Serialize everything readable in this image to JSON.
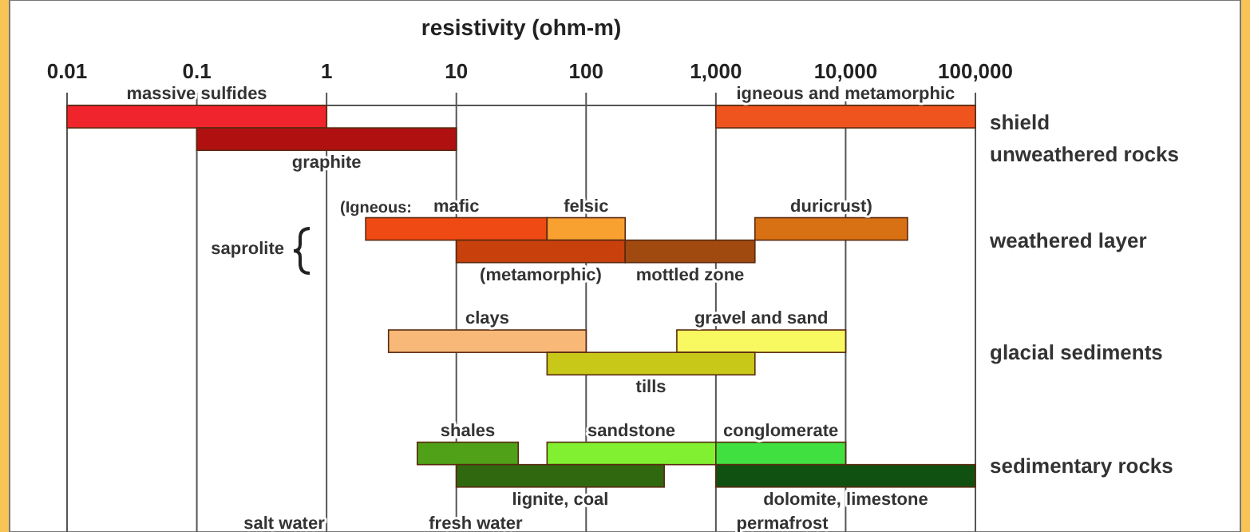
{
  "chart_data": {
    "type": "bar",
    "orientation": "horizontal",
    "log": "x",
    "grid": "x",
    "xlabel": "resistivity (ohm-m)",
    "categories": [
      null,
      null,
      null,
      null,
      null,
      null,
      null,
      null,
      null,
      null,
      null,
      null,
      null,
      null,
      null,
      null,
      null,
      null,
      null
    ],
    "xlim": [
      0.01,
      100000
    ],
    "xticks": [
      0.01,
      0.1,
      1,
      10,
      100,
      {
        "value": 1000,
        "label": "1,000"
      },
      {
        "value": 10000,
        "label": "10,000"
      },
      {
        "value": 100000,
        "label": "100,000"
      }
    ],
    "series": [
      {
        "name": "massive sulfides",
        "color": "#f0242c",
        "base": [
          0.01,
          null,
          null,
          null,
          null,
          null,
          null,
          null,
          null,
          null,
          null,
          null,
          null,
          null,
          null,
          null,
          null,
          null,
          null
        ],
        "values": [
          0.99,
          null,
          null,
          null,
          null,
          null,
          null,
          null,
          null,
          null,
          null,
          null,
          null,
          null,
          null,
          null,
          null,
          null,
          null
        ]
      },
      {
        "name": "igneous and metamorphic",
        "color": "#f0541e",
        "base": [
          1000,
          null,
          null,
          null,
          null,
          null,
          null,
          null,
          null,
          null,
          null,
          null,
          null,
          null,
          null,
          null,
          null,
          null,
          null
        ],
        "values": [
          99000,
          null,
          null,
          null,
          null,
          null,
          null,
          null,
          null,
          null,
          null,
          null,
          null,
          null,
          null,
          null,
          null,
          null,
          null
        ]
      },
      {
        "name": "graphite",
        "color": "#b01010",
        "base": [
          null,
          0.1,
          null,
          null,
          null,
          null,
          null,
          null,
          null,
          null,
          null,
          null,
          null,
          null,
          null,
          null,
          null,
          null,
          null
        ],
        "values": [
          null,
          9.9,
          null,
          null,
          null,
          null,
          null,
          null,
          null,
          null,
          null,
          null,
          null,
          null,
          null,
          null,
          null,
          null,
          null
        ]
      },
      {
        "name": "mafic",
        "color": "#f04a14",
        "base": [
          null,
          null,
          null,
          null,
          null,
          2,
          null,
          null,
          null,
          null,
          null,
          null,
          null,
          null,
          null,
          null,
          null,
          null,
          null
        ],
        "values": [
          null,
          null,
          null,
          null,
          null,
          48,
          null,
          null,
          null,
          null,
          null,
          null,
          null,
          null,
          null,
          null,
          null,
          null,
          null
        ]
      },
      {
        "name": "felsic",
        "color": "#f8a030",
        "base": [
          null,
          null,
          null,
          null,
          null,
          50,
          null,
          null,
          null,
          null,
          null,
          null,
          null,
          null,
          null,
          null,
          null,
          null,
          null
        ],
        "values": [
          null,
          null,
          null,
          null,
          null,
          150,
          null,
          null,
          null,
          null,
          null,
          null,
          null,
          null,
          null,
          null,
          null,
          null,
          null
        ]
      },
      {
        "name": "duricrust)",
        "color": "#d87014",
        "base": [
          null,
          null,
          null,
          null,
          null,
          2000,
          null,
          null,
          null,
          null,
          null,
          null,
          null,
          null,
          null,
          null,
          null,
          null,
          null
        ],
        "values": [
          null,
          null,
          null,
          null,
          null,
          28000,
          null,
          null,
          null,
          null,
          null,
          null,
          null,
          null,
          null,
          null,
          null,
          null,
          null
        ]
      },
      {
        "name": "(metamorphic)",
        "color": "#c8400c",
        "base": [
          null,
          null,
          null,
          null,
          null,
          null,
          10,
          null,
          null,
          null,
          null,
          null,
          null,
          null,
          null,
          null,
          null,
          null,
          null
        ],
        "values": [
          null,
          null,
          null,
          null,
          null,
          null,
          190,
          null,
          null,
          null,
          null,
          null,
          null,
          null,
          null,
          null,
          null,
          null,
          null
        ]
      },
      {
        "name": "mottled zone",
        "color": "#a04a10",
        "base": [
          null,
          null,
          null,
          null,
          null,
          null,
          200,
          null,
          null,
          null,
          null,
          null,
          null,
          null,
          null,
          null,
          null,
          null,
          null
        ],
        "values": [
          null,
          null,
          null,
          null,
          null,
          null,
          1800,
          null,
          null,
          null,
          null,
          null,
          null,
          null,
          null,
          null,
          null,
          null,
          null
        ]
      },
      {
        "name": "clays",
        "color": "#f8b878",
        "base": [
          null,
          null,
          null,
          null,
          null,
          null,
          null,
          null,
          null,
          null,
          3,
          null,
          null,
          null,
          null,
          null,
          null,
          null,
          null
        ],
        "values": [
          null,
          null,
          null,
          null,
          null,
          null,
          null,
          null,
          null,
          null,
          97,
          null,
          null,
          null,
          null,
          null,
          null,
          null,
          null
        ]
      },
      {
        "name": "gravel and sand",
        "color": "#f8f860",
        "base": [
          null,
          null,
          null,
          null,
          null,
          null,
          null,
          null,
          null,
          null,
          500,
          null,
          null,
          null,
          null,
          null,
          null,
          null,
          null
        ],
        "values": [
          null,
          null,
          null,
          null,
          null,
          null,
          null,
          null,
          null,
          null,
          9500,
          null,
          null,
          null,
          null,
          null,
          null,
          null,
          null
        ]
      },
      {
        "name": "tills",
        "color": "#c8c818",
        "base": [
          null,
          null,
          null,
          null,
          null,
          null,
          null,
          null,
          null,
          null,
          null,
          50,
          null,
          null,
          null,
          null,
          null,
          null,
          null
        ],
        "values": [
          null,
          null,
          null,
          null,
          null,
          null,
          null,
          null,
          null,
          null,
          null,
          1950,
          null,
          null,
          null,
          null,
          null,
          null,
          null
        ]
      },
      {
        "name": "shales",
        "color": "#50a018",
        "base": [
          null,
          null,
          null,
          null,
          null,
          null,
          null,
          null,
          null,
          null,
          null,
          null,
          null,
          null,
          null,
          5,
          null,
          null,
          null
        ],
        "values": [
          null,
          null,
          null,
          null,
          null,
          null,
          null,
          null,
          null,
          null,
          null,
          null,
          null,
          null,
          null,
          25,
          null,
          null,
          null
        ]
      },
      {
        "name": "sandstone",
        "color": "#80f030",
        "base": [
          null,
          null,
          null,
          null,
          null,
          null,
          null,
          null,
          null,
          null,
          null,
          null,
          null,
          null,
          null,
          50,
          null,
          null,
          null
        ],
        "values": [
          null,
          null,
          null,
          null,
          null,
          null,
          null,
          null,
          null,
          null,
          null,
          null,
          null,
          null,
          null,
          950,
          null,
          null,
          null
        ]
      },
      {
        "name": "conglomerate",
        "color": "#40e040",
        "base": [
          null,
          null,
          null,
          null,
          null,
          null,
          null,
          null,
          null,
          null,
          null,
          null,
          null,
          null,
          null,
          1000,
          null,
          null,
          null
        ],
        "values": [
          null,
          null,
          null,
          null,
          null,
          null,
          null,
          null,
          null,
          null,
          null,
          null,
          null,
          null,
          null,
          9000,
          null,
          null,
          null
        ]
      },
      {
        "name": "lignite, coal",
        "color": "#306810",
        "base": [
          null,
          null,
          null,
          null,
          null,
          null,
          null,
          null,
          null,
          null,
          null,
          null,
          null,
          null,
          null,
          null,
          10,
          null,
          null
        ],
        "values": [
          null,
          null,
          null,
          null,
          null,
          null,
          null,
          null,
          null,
          null,
          null,
          null,
          null,
          null,
          null,
          null,
          390,
          null,
          null
        ]
      },
      {
        "name": "dolomite, limestone",
        "color": "#105010",
        "base": [
          null,
          null,
          null,
          null,
          null,
          null,
          null,
          null,
          null,
          null,
          null,
          null,
          null,
          null,
          null,
          null,
          1000,
          null,
          null
        ],
        "values": [
          null,
          null,
          null,
          null,
          null,
          null,
          null,
          null,
          null,
          null,
          null,
          null,
          null,
          null,
          null,
          null,
          99000,
          null,
          null
        ]
      }
    ],
    "annotations": [
      "shield",
      "unweathered rocks",
      "weathered layer",
      "glacial sediments",
      "sedimentary rocks",
      "(Igneous:",
      "saprolite",
      "salt water",
      "fresh water",
      "permafrost"
    ]
  }
}
